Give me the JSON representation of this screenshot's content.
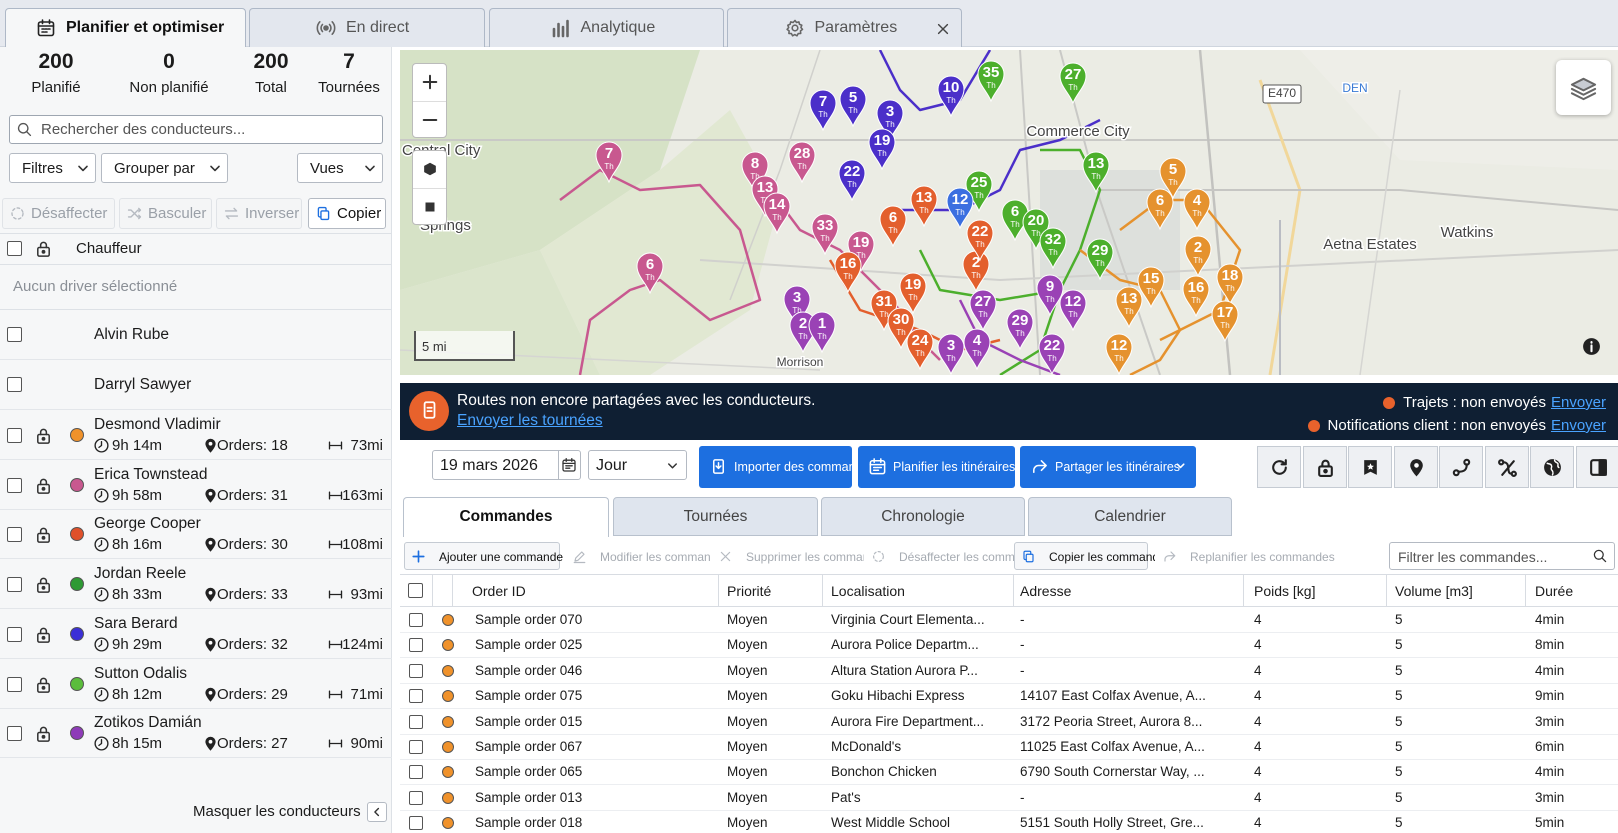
{
  "tabs": [
    "Planifier et optimiser",
    "En direct",
    "Analytique",
    "Paramètres"
  ],
  "stats": [
    {
      "value": 200,
      "label": "Planifié"
    },
    {
      "value": 0,
      "label": "Non planifié"
    },
    {
      "value": 200,
      "label": "Total"
    },
    {
      "value": 7,
      "label": "Tournées"
    }
  ],
  "driver_search": "Rechercher des conducteurs...",
  "filters": [
    "Filtres",
    "Grouper par",
    "Vues"
  ],
  "driver_actions": [
    "Désaffecter",
    "Basculer",
    "Inverser",
    "Copier"
  ],
  "driver_header": "Chauffeur",
  "no_selection": "Aucun driver sélectionné",
  "drivers": [
    {
      "name": "Alvin Rube"
    },
    {
      "name": "Darryl Sawyer"
    },
    {
      "name": "Desmond Vladimir",
      "color": "#f0922b",
      "time": "9h 14m",
      "orders": "Orders: 18",
      "distance": "73mi"
    },
    {
      "name": "Erica Townstead",
      "color": "#c8588f",
      "time": "9h 58m",
      "orders": "Orders: 31",
      "distance": "163mi"
    },
    {
      "name": "George Cooper",
      "color": "#e0502a",
      "time": "8h 16m",
      "orders": "Orders: 30",
      "distance": "108mi"
    },
    {
      "name": "Jordan Reele",
      "color": "#2e9a34",
      "time": "8h 33m",
      "orders": "Orders: 33",
      "distance": "93mi"
    },
    {
      "name": "Sara Berard",
      "color": "#3b2fd6",
      "time": "9h 29m",
      "orders": "Orders: 32",
      "distance": "124mi"
    },
    {
      "name": "Sutton Odalis",
      "color": "#5bbd3c",
      "time": "8h 12m",
      "orders": "Orders: 29",
      "distance": "71mi"
    },
    {
      "name": "Zotikos Damián",
      "color": "#8e3bb8",
      "time": "8h 15m",
      "orders": "Orders: 27",
      "distance": "90mi"
    }
  ],
  "hide_drivers": "Masquer les conducteurs",
  "map": {
    "places": [
      "Central City",
      "Springs",
      "Commerce City",
      "Aetna Estates",
      "Watkins",
      "E470",
      "DEN",
      "Morrison"
    ],
    "scale": "5 mi",
    "pin_suffix": "Th",
    "pins": [
      {
        "label": "7",
        "color": "#c8588f"
      },
      {
        "label": "6",
        "color": "#c8588f"
      },
      {
        "label": "28",
        "color": "#c8588f"
      },
      {
        "label": "8",
        "color": "#c8588f"
      },
      {
        "label": "13",
        "color": "#c8588f"
      },
      {
        "label": "14",
        "color": "#c8588f"
      },
      {
        "label": "33",
        "color": "#c8588f"
      },
      {
        "label": "19",
        "color": "#c8588f"
      },
      {
        "label": "5",
        "color": "#4b2fc9"
      },
      {
        "label": "7",
        "color": "#4b2fc9"
      },
      {
        "label": "3",
        "color": "#4b2fc9"
      },
      {
        "label": "19",
        "color": "#4b2fc9"
      },
      {
        "label": "22",
        "color": "#4b2fc9"
      },
      {
        "label": "10",
        "color": "#4b2fc9"
      },
      {
        "label": "35",
        "color": "#4caf2c"
      },
      {
        "label": "27",
        "color": "#4caf2c"
      },
      {
        "label": "13",
        "color": "#4caf2c"
      },
      {
        "label": "6",
        "color": "#4caf2c"
      },
      {
        "label": "20",
        "color": "#4caf2c"
      },
      {
        "label": "29",
        "color": "#4caf2c"
      },
      {
        "label": "32",
        "color": "#4caf2c"
      },
      {
        "label": "25",
        "color": "#4caf2c"
      },
      {
        "label": "5",
        "color": "#e5922e"
      },
      {
        "label": "6",
        "color": "#e5922e"
      },
      {
        "label": "4",
        "color": "#e5922e"
      },
      {
        "label": "2",
        "color": "#e5922e"
      },
      {
        "label": "15",
        "color": "#e5922e"
      },
      {
        "label": "16",
        "color": "#e5922e"
      },
      {
        "label": "18",
        "color": "#e5922e"
      },
      {
        "label": "17",
        "color": "#e5922e"
      },
      {
        "label": "13",
        "color": "#e5922e"
      },
      {
        "label": "12",
        "color": "#e5922e"
      },
      {
        "label": "16",
        "color": "#e35f2d"
      },
      {
        "label": "13",
        "color": "#e35f2d"
      },
      {
        "label": "6",
        "color": "#e35f2d"
      },
      {
        "label": "31",
        "color": "#e35f2d"
      },
      {
        "label": "30",
        "color": "#e35f2d"
      },
      {
        "label": "19",
        "color": "#e35f2d"
      },
      {
        "label": "2",
        "color": "#e35f2d"
      },
      {
        "label": "22",
        "color": "#e35f2d"
      },
      {
        "label": "24",
        "color": "#e35f2d"
      },
      {
        "label": "3",
        "color": "#9a42b5"
      },
      {
        "label": "2",
        "color": "#9a42b5"
      },
      {
        "label": "1",
        "color": "#9a42b5"
      },
      {
        "label": "27",
        "color": "#9a42b5"
      },
      {
        "label": "29",
        "color": "#9a42b5"
      },
      {
        "label": "9",
        "color": "#9a42b5"
      },
      {
        "label": "12",
        "color": "#9a42b5"
      },
      {
        "label": "22",
        "color": "#9a42b5"
      },
      {
        "label": "4",
        "color": "#9a42b5"
      },
      {
        "label": "3",
        "color": "#9a42b5"
      },
      {
        "label": "12",
        "color": "#3b6fe0"
      }
    ]
  },
  "banner": {
    "message": "Routes non encore partagées avec les conducteurs.",
    "link": "Envoyer les tournées",
    "statuses": [
      {
        "label": "Trajets : non envoyés",
        "action": "Envoyer"
      },
      {
        "label": "Notifications client : non envoyés",
        "action": "Envoyer"
      }
    ]
  },
  "toolbar": {
    "date": "19 mars 2026",
    "period": "Jour",
    "buttons": [
      "Importer des commandes",
      "Planifier les itinéraires",
      "Partager les itinéraires"
    ]
  },
  "views": [
    "Commandes",
    "Tournées",
    "Chronologie",
    "Calendrier"
  ],
  "order_actions": [
    "Ajouter une commande",
    "Modifier les commandes",
    "Supprimer les commandes",
    "Désaffecter les commandes",
    "Copier les commandes",
    "Replanifier les commandes"
  ],
  "order_filter": "Filtrer les commandes...",
  "table": {
    "columns": [
      "Order ID",
      "Priorité",
      "Localisation",
      "Adresse",
      "Poids [kg]",
      "Volume [m3]",
      "Durée"
    ],
    "rows": [
      [
        "Sample order 070",
        "Moyen",
        "Virginia Court Elementa...",
        "-",
        4,
        5,
        "4min"
      ],
      [
        "Sample order 025",
        "Moyen",
        "Aurora Police Departm...",
        "-",
        4,
        5,
        "8min"
      ],
      [
        "Sample order 046",
        "Moyen",
        "Altura Station Aurora P...",
        "-",
        4,
        5,
        "4min"
      ],
      [
        "Sample order 075",
        "Moyen",
        "Goku Hibachi Express",
        "14107 East Colfax Avenue, A...",
        4,
        5,
        "9min"
      ],
      [
        "Sample order 015",
        "Moyen",
        "Aurora Fire Department...",
        "3172 Peoria Street, Aurora 8...",
        4,
        5,
        "3min"
      ],
      [
        "Sample order 067",
        "Moyen",
        "McDonald's",
        "11025 East Colfax Avenue, A...",
        4,
        5,
        "6min"
      ],
      [
        "Sample order 065",
        "Moyen",
        "Bonchon Chicken",
        "6790 South Cornerstar Way, ...",
        4,
        5,
        "4min"
      ],
      [
        "Sample order 013",
        "Moyen",
        "Pat's",
        "-",
        4,
        5,
        "3min"
      ],
      [
        "Sample order 018",
        "Moyen",
        "West Middle School",
        "5151 South Holly Street, Gre...",
        4,
        5,
        "5min"
      ]
    ]
  }
}
